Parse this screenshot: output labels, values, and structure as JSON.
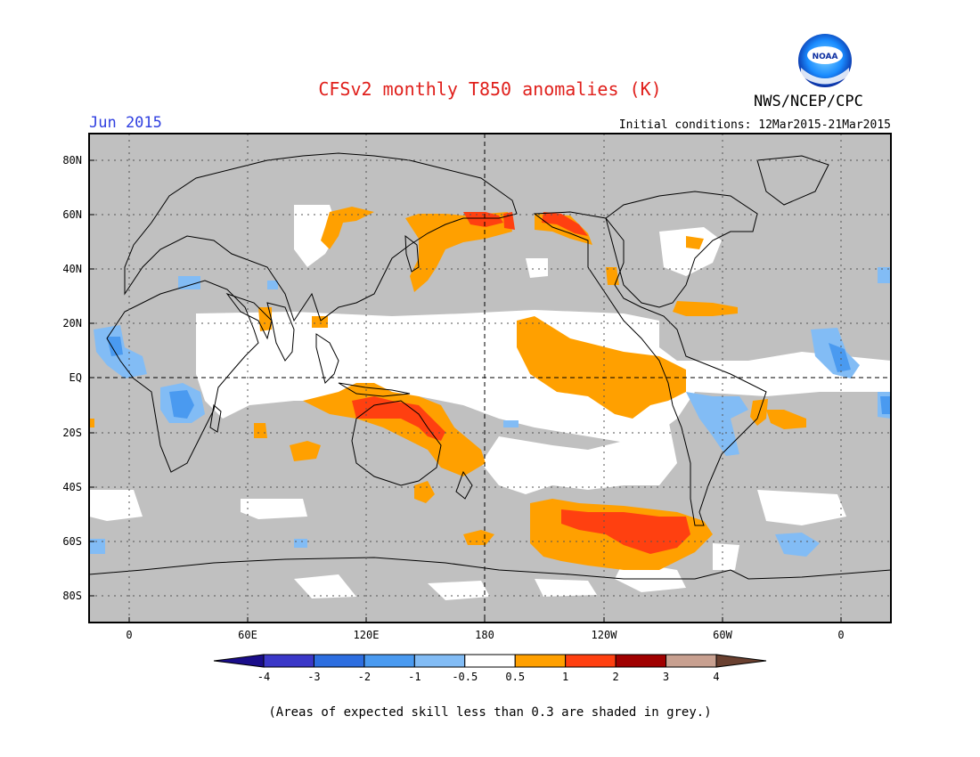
{
  "header": {
    "title": "CFSv2 monthly T850 anomalies (K)",
    "agency": "NWS/NCEP/CPC",
    "month": "Jun 2015",
    "initial_conditions": "Initial conditions: 12Mar2015-21Mar2015",
    "logo_text": "NOAA"
  },
  "map": {
    "lat_ticks": [
      "80N",
      "60N",
      "40N",
      "20N",
      "EQ",
      "20S",
      "40S",
      "60S",
      "80S"
    ],
    "lon_ticks": [
      "0",
      "60E",
      "120E",
      "180",
      "120W",
      "60W",
      "0"
    ],
    "ocean_color": "#c0c0c0"
  },
  "colorbar": {
    "labels": [
      "-4",
      "-3",
      "-2",
      "-1",
      "-0.5",
      "0.5",
      "1",
      "2",
      "3",
      "4"
    ],
    "colors": [
      "#1a0d8a",
      "#3b38c8",
      "#2d6ee0",
      "#4a9af0",
      "#82bcf5",
      "#ffffff",
      "#ffa000",
      "#ff4010",
      "#a00000",
      "#c8a090",
      "#6a4030"
    ]
  },
  "footnote": "(Areas of expected skill less than 0.3 are shaded in grey.)"
}
